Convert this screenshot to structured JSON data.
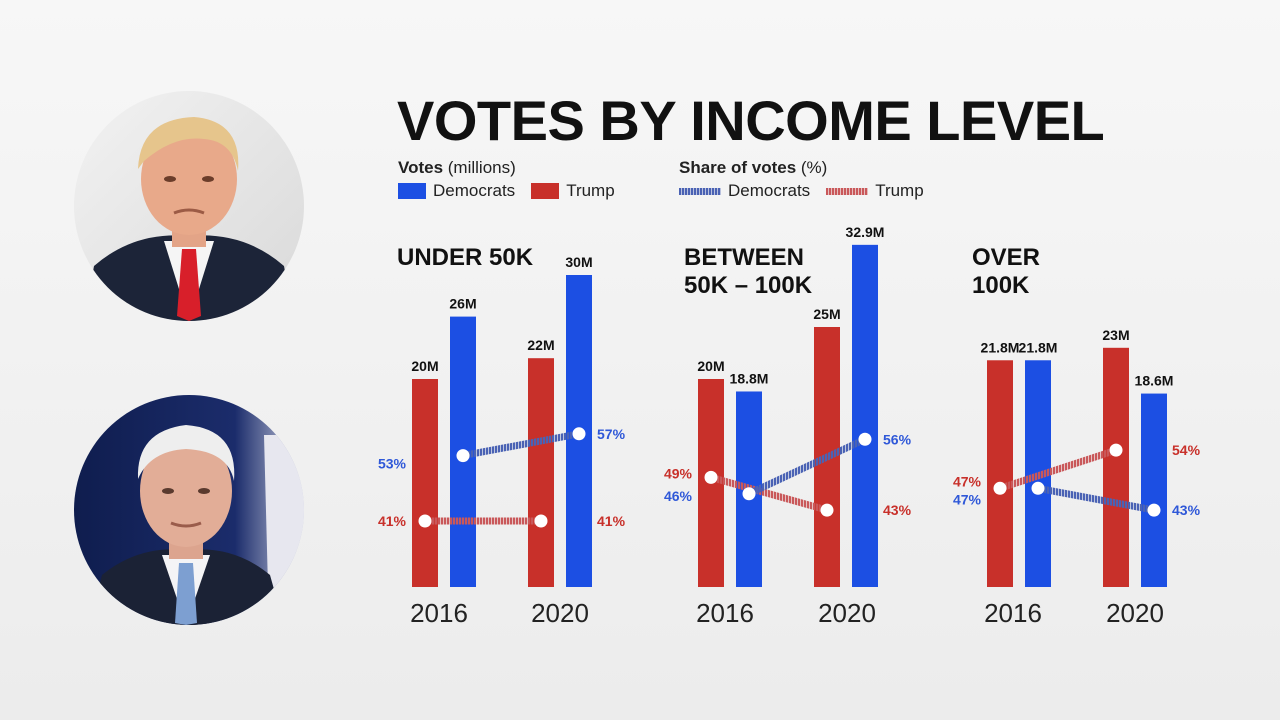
{
  "title": "VOTES BY INCOME LEVEL",
  "legend": {
    "votes": {
      "label_bold": "Votes",
      "label_unit": " (millions)",
      "democrats": "Democrats",
      "trump": "Trump"
    },
    "share": {
      "label_bold": "Share of votes",
      "label_unit": " (%)",
      "democrats": "Democrats",
      "trump": "Trump"
    }
  },
  "colors": {
    "democrats": "#1c4fe3",
    "trump": "#c8302a",
    "dem_share_line": "#4a62b4",
    "trump_share_line": "#c9585a",
    "dem_label": "#2f58d8",
    "trump_label": "#c8302a"
  },
  "chart_data": [
    {
      "type": "bar",
      "title": "UNDER 50K",
      "categories": [
        "2016",
        "2020"
      ],
      "series": [
        {
          "name": "Trump",
          "values": [
            20,
            22
          ],
          "labels": [
            "20M",
            "22M"
          ]
        },
        {
          "name": "Democrats",
          "values": [
            26,
            30
          ],
          "labels": [
            "26M",
            "30M"
          ]
        }
      ],
      "share": {
        "Democrats": {
          "values": [
            53,
            57
          ],
          "labels": [
            "53%",
            "57%"
          ]
        },
        "Trump": {
          "values": [
            41,
            41
          ],
          "labels": [
            "41%",
            "41%"
          ]
        }
      }
    },
    {
      "type": "bar",
      "title": "BETWEEN\n50K – 100K",
      "categories": [
        "2016",
        "2020"
      ],
      "series": [
        {
          "name": "Trump",
          "values": [
            20,
            25
          ],
          "labels": [
            "20M",
            "25M"
          ]
        },
        {
          "name": "Democrats",
          "values": [
            18.8,
            32.9
          ],
          "labels": [
            "18.8M",
            "32.9M"
          ]
        }
      ],
      "share": {
        "Democrats": {
          "values": [
            46,
            56
          ],
          "labels": [
            "46%",
            "56%"
          ]
        },
        "Trump": {
          "values": [
            49,
            43
          ],
          "labels": [
            "49%",
            "43%"
          ]
        }
      }
    },
    {
      "type": "bar",
      "title": "OVER\n100K",
      "categories": [
        "2016",
        "2020"
      ],
      "series": [
        {
          "name": "Trump",
          "values": [
            21.8,
            23
          ],
          "labels": [
            "21.8M",
            "23M"
          ]
        },
        {
          "name": "Democrats",
          "values": [
            21.8,
            18.6
          ],
          "labels": [
            "21.8M",
            "18.6M"
          ]
        }
      ],
      "share": {
        "Democrats": {
          "values": [
            47,
            43
          ],
          "labels": [
            "47%",
            "43%"
          ]
        },
        "Trump": {
          "values": [
            47,
            54
          ],
          "labels": [
            "47%",
            "54%"
          ]
        }
      }
    }
  ]
}
